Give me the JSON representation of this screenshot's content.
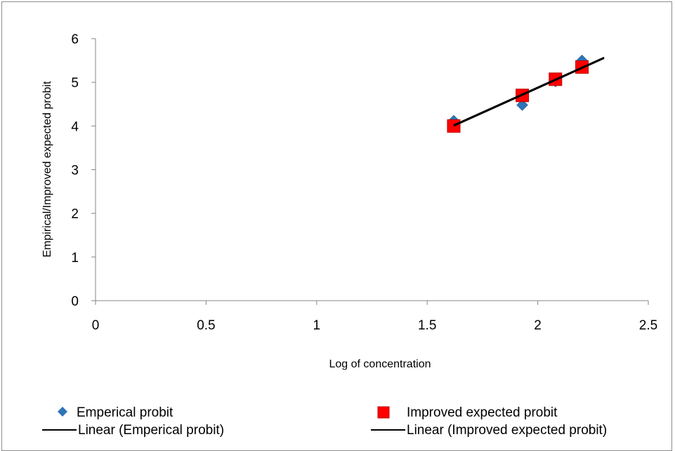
{
  "chart_data": {
    "type": "scatter",
    "xlabel": "Log of concentration",
    "ylabel": "Empirical/Improved expected probit",
    "xlim": [
      0,
      2.5
    ],
    "ylim": [
      0,
      6
    ],
    "x_ticks": [
      "0",
      "0.5",
      "1",
      "1.5",
      "2",
      "2.5"
    ],
    "y_ticks": [
      "0",
      "1",
      "2",
      "3",
      "4",
      "5",
      "6"
    ],
    "grid": false,
    "legend_position": "bottom",
    "series": [
      {
        "name": "Emperical probit",
        "marker": "diamond",
        "color": "#2e75b6",
        "x": [
          1.62,
          1.93,
          2.08,
          2.2
        ],
        "y": [
          4.12,
          4.48,
          5.02,
          5.5
        ]
      },
      {
        "name": "Improved expected probit",
        "marker": "square",
        "color": "#ff0000",
        "x": [
          1.62,
          1.93,
          2.08,
          2.2
        ],
        "y": [
          4.0,
          4.7,
          5.07,
          5.35
        ]
      }
    ],
    "trendlines": [
      {
        "name": "Linear (Emperical probit)",
        "color": "#000000",
        "x": [
          1.62,
          2.3
        ],
        "y": [
          4.02,
          5.57
        ]
      },
      {
        "name": "Linear (Improved expected probit)",
        "color": "#000000",
        "x": [
          1.62,
          2.3
        ],
        "y": [
          4.0,
          5.55
        ]
      }
    ]
  }
}
